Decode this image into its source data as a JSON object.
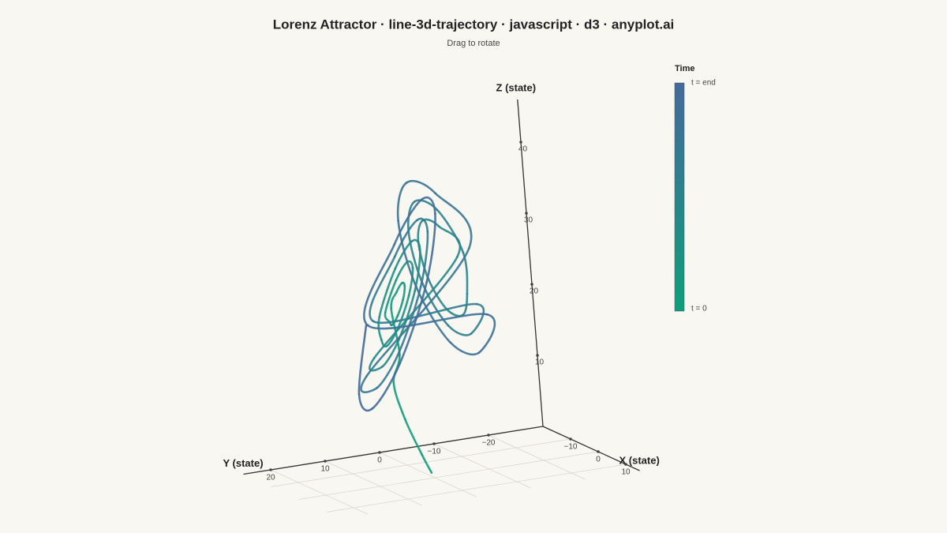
{
  "chart_data": {
    "type": "line-3d",
    "title": "Lorenz Attractor · line-3d-trajectory · javascript · d3 · anyplot.ai",
    "subtitle": "Drag to rotate",
    "xlabel": "X (state)",
    "ylabel": "Y (state)",
    "zlabel": "Z (state)",
    "xlim": [
      -20,
      15
    ],
    "ylim": [
      -30,
      25
    ],
    "zlim": [
      0,
      46
    ],
    "xticks": [
      {
        "value": -10,
        "label": "−10"
      },
      0,
      10
    ],
    "yticks": [
      {
        "value": -20,
        "label": "−20"
      },
      {
        "value": -10,
        "label": "−10"
      },
      0,
      10,
      20
    ],
    "zticks": [
      10,
      20,
      30,
      40
    ],
    "grid": true,
    "colorbar": {
      "title": "Time",
      "start_label": "t = 0",
      "end_label": "t = end",
      "colors": [
        "#0e9f7a",
        "#44699c"
      ]
    },
    "x": [
      1,
      2,
      5,
      8,
      9,
      10.5,
      9.9,
      8.5,
      7.1,
      6.5,
      7.1,
      8.5,
      9.9,
      12.5,
      11.3,
      8.5,
      5.7,
      4.5,
      5.7,
      8.5,
      11.3,
      14.5,
      12.8,
      8.5,
      4.2,
      2.5,
      4.2,
      8.5,
      12.8,
      -13.5,
      -12.1,
      -8.5,
      -4.9,
      -3.5,
      -4.9,
      -8.5,
      -12.1,
      -15.5,
      -13.5,
      -8.5,
      -3.5,
      -1.5,
      -3.5,
      -8.5,
      -13.5,
      16.5,
      14.2,
      8.5,
      2.8,
      0.5,
      2.8,
      8.5,
      14.2,
      -17.5,
      -14.9,
      -8.5,
      -2.1,
      0.5,
      -2.1,
      -8.5,
      -14.9,
      18.5,
      15.6,
      8.5,
      1.4,
      -1.5,
      1.4,
      8.5,
      15.6,
      18
    ],
    "y": [
      1,
      3,
      7,
      10,
      9,
      10.6,
      9.1,
      7.3,
      6.2,
      6.4,
      7.9,
      9.7,
      10.8,
      12.7,
      9.7,
      6.1,
      3.8,
      4.3,
      7.3,
      10.9,
      13.2,
      14.8,
      10.4,
      4.9,
      1.5,
      2.2,
      6.6,
      12.1,
      15.5,
      -13.7,
      -10.1,
      -5.5,
      -2.7,
      -3.3,
      -6.9,
      -11.5,
      -14.3,
      -15.8,
      -10.7,
      -4.3,
      -0.4,
      -1.2,
      -6.3,
      -12.7,
      -16.6,
      16.9,
      11,
      3.7,
      -0.8,
      0.1,
      6,
      13.3,
      17.8,
      -17.9,
      -11.3,
      -3.1,
      2,
      0.9,
      -5.7,
      -13.9,
      -19,
      18.9,
      11.6,
      2.5,
      -3.1,
      -2,
      5.4,
      14.5,
      20.1,
      19
    ],
    "z": [
      1,
      4,
      10,
      16,
      20,
      27,
      29,
      29.8,
      29,
      27,
      25,
      24.2,
      25,
      27,
      31,
      32.6,
      31,
      27,
      23,
      21.4,
      23,
      27,
      33,
      35.4,
      33,
      27,
      21,
      18.6,
      21,
      27,
      32,
      34,
      32,
      27,
      22,
      20,
      22,
      27,
      34,
      36.8,
      34,
      27,
      20,
      17.2,
      20,
      27,
      35,
      38.2,
      35,
      27,
      19,
      15.8,
      19,
      27,
      36,
      39.6,
      36,
      27,
      18,
      14.4,
      18,
      27,
      37,
      41,
      37,
      27,
      17,
      13,
      17,
      27
    ]
  }
}
